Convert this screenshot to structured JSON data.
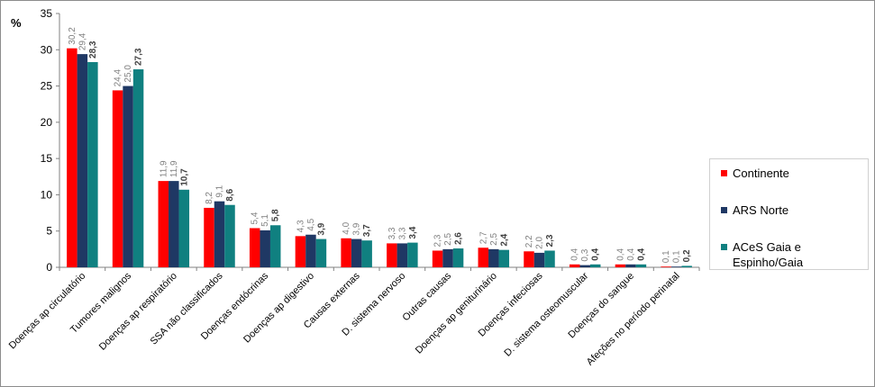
{
  "chart_data": {
    "type": "bar",
    "ylabel": "%",
    "ylim": [
      0,
      35
    ],
    "yticks": [
      0,
      5,
      10,
      15,
      20,
      25,
      30,
      35
    ],
    "categories": [
      "Doenças ap circulatório",
      "Tumores malignos",
      "Doenças ap respiratório",
      "SSA não classificados",
      "Doenças endócrinas",
      "Doenças ap digestivo",
      "Causas externas",
      "D. sistema nervoso",
      "Outras causas",
      "Doenças ap geniturinário",
      "Doenças infeciosas",
      "D. sistema osteomuscular",
      "Doenças do sangue",
      "Afeções no período perinatal"
    ],
    "series": [
      {
        "name": "Continente",
        "color": "#ff0000",
        "values": [
          30.2,
          24.4,
          11.9,
          8.2,
          5.4,
          4.3,
          4.0,
          3.3,
          2.3,
          2.7,
          2.2,
          0.4,
          0.4,
          0.1
        ],
        "labels": [
          "30,2",
          "24,4",
          "11,9",
          "8,2",
          "5,4",
          "4,3",
          "4,0",
          "3,3",
          "2,3",
          "2,7",
          "2,2",
          "0,4",
          "0,4",
          "0,1"
        ]
      },
      {
        "name": "ARS Norte",
        "color": "#1f3864",
        "values": [
          29.4,
          25.0,
          11.9,
          9.1,
          5.1,
          4.5,
          3.9,
          3.3,
          2.5,
          2.5,
          2.0,
          0.3,
          0.4,
          0.1
        ],
        "labels": [
          "29,4",
          "25,0",
          "11,9",
          "9,1",
          "5,1",
          "4,5",
          "3,9",
          "3,3",
          "2,5",
          "2,5",
          "2,0",
          "0,3",
          "0,4",
          "0,1"
        ]
      },
      {
        "name": "ACeS Gaia e Espinho/Gaia",
        "color": "#108080",
        "values": [
          28.3,
          27.3,
          10.7,
          8.6,
          5.8,
          3.9,
          3.7,
          3.4,
          2.6,
          2.4,
          2.3,
          0.4,
          0.4,
          0.2
        ],
        "labels": [
          "28,3",
          "27,3",
          "10,7",
          "8,6",
          "5,8",
          "3,9",
          "3,7",
          "3,4",
          "2,6",
          "2,4",
          "2,3",
          "0,4",
          "0,4",
          "0,2"
        ]
      }
    ],
    "label_colors": [
      "#808080",
      "#808080",
      "#404040"
    ],
    "legend_position": "right",
    "grid": false
  }
}
